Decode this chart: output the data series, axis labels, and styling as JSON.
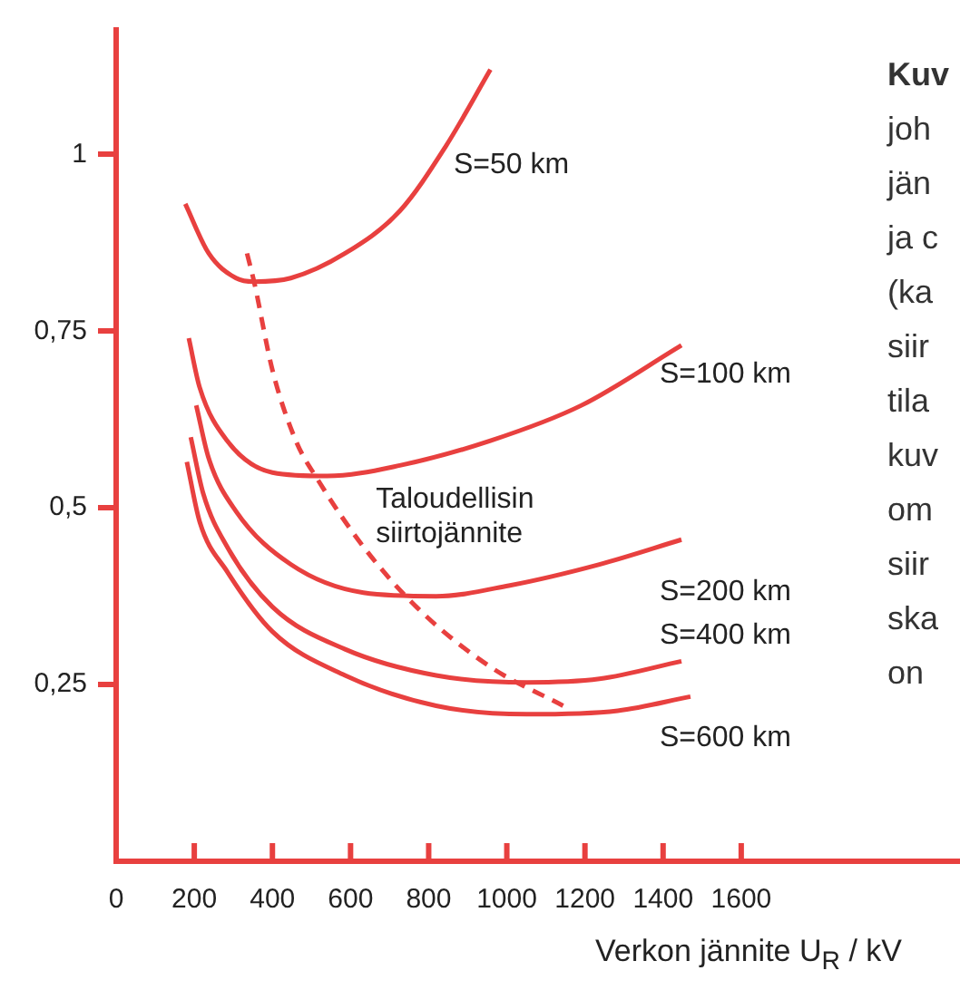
{
  "chart_data": {
    "type": "line",
    "xlabel": "Verkon jännite U$_{R}$ / kV",
    "xlim": [
      0,
      2160
    ],
    "xticks": [
      0,
      200,
      400,
      600,
      800,
      1000,
      1200,
      1400,
      1600
    ],
    "ylim": [
      0,
      1.18
    ],
    "yticks": [
      {
        "value": 0.25,
        "label": "0,25"
      },
      {
        "value": 0.5,
        "label": "0,5"
      },
      {
        "value": 0.75,
        "label": "0,75"
      },
      {
        "value": 1,
        "label": "1"
      }
    ],
    "grid": false,
    "legend": false,
    "marker": "none",
    "series": [
      {
        "name": "S=50 km",
        "color": "#e8403f",
        "x": [
          177,
          237,
          307,
          353,
          447,
          586,
          726,
          842,
          958
        ],
        "values": [
          0.93,
          0.86,
          0.825,
          0.82,
          0.825,
          0.86,
          0.92,
          1.01,
          1.12
        ]
      },
      {
        "name": "S=100 km",
        "color": "#e8403f",
        "x": [
          186,
          214,
          284,
          400,
          540,
          726,
          958,
          1191,
          1447
        ],
        "values": [
          0.74,
          0.67,
          0.595,
          0.55,
          0.545,
          0.56,
          0.595,
          0.645,
          0.73
        ]
      },
      {
        "name": "S=200 km",
        "color": "#e8403f",
        "x": [
          205,
          237,
          307,
          447,
          633,
          819,
          1005,
          1237,
          1447
        ],
        "values": [
          0.645,
          0.57,
          0.495,
          0.42,
          0.38,
          0.375,
          0.39,
          0.42,
          0.455
        ]
      },
      {
        "name": "S=400 km",
        "color": "#e8403f",
        "x": [
          191,
          223,
          284,
          400,
          586,
          819,
          1051,
          1237,
          1447
        ],
        "values": [
          0.6,
          0.52,
          0.445,
          0.36,
          0.3,
          0.263,
          0.253,
          0.258,
          0.283
        ]
      },
      {
        "name": "S=600 km",
        "color": "#e8403f",
        "x": [
          181,
          214,
          284,
          400,
          586,
          819,
          1051,
          1284,
          1470
        ],
        "values": [
          0.565,
          0.48,
          0.41,
          0.325,
          0.263,
          0.22,
          0.208,
          0.213,
          0.233
        ]
      },
      {
        "name": "Taloudellisin siirtojännite",
        "color": "#e8403f",
        "line_style": "dashed",
        "x": [
          335,
          353,
          400,
          460,
          516,
          633,
          772,
          958,
          1144
        ],
        "values": [
          0.86,
          0.82,
          0.695,
          0.595,
          0.54,
          0.445,
          0.358,
          0.275,
          0.22
        ]
      }
    ],
    "annotations": [
      "Kuv",
      "joh",
      "jän",
      "ja c",
      "(ka",
      "siir",
      "tila",
      "kuv",
      "om",
      "siir",
      "ska",
      "on"
    ]
  }
}
